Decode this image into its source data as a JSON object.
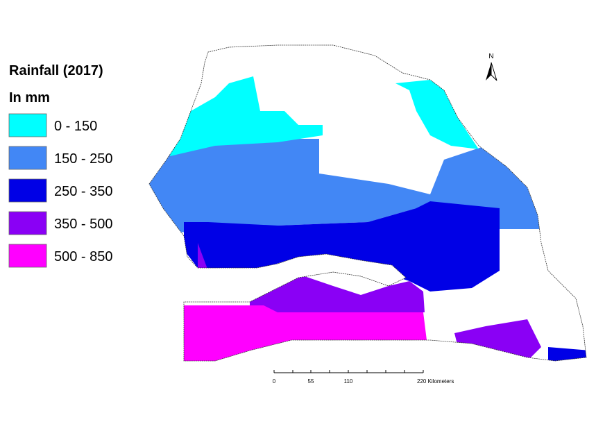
{
  "legend": {
    "title": "Rainfall (2017)",
    "subtitle": "In mm",
    "items": [
      {
        "label": "0 - 150",
        "color": "#00ffff"
      },
      {
        "label": "150 - 250",
        "color": "#4287f5"
      },
      {
        "label": "250 - 350",
        "color": "#0000e6"
      },
      {
        "label": "350 - 500",
        "color": "#8a00f5"
      },
      {
        "label": "500 - 850",
        "color": "#ff00ff"
      }
    ]
  },
  "north_arrow": "N",
  "scale_bar": {
    "labels": [
      "0",
      "55",
      "110",
      "220 Kilometers"
    ]
  }
}
